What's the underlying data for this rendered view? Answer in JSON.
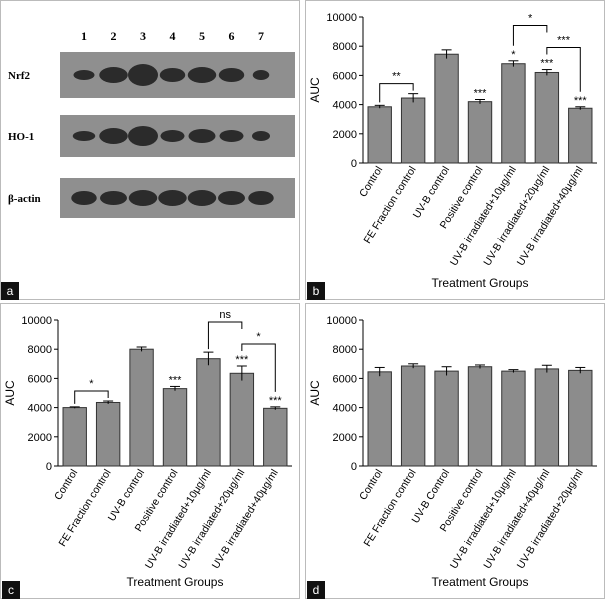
{
  "blot": {
    "panel": "a",
    "lanes": [
      "1",
      "2",
      "3",
      "4",
      "5",
      "6",
      "7"
    ],
    "rows": [
      "Nrf2",
      "HO-1",
      "β-actin"
    ]
  },
  "chart_data": [
    {
      "type": "bar",
      "panel": "b",
      "ylabel": "AUC",
      "xlabel": "Treatment Groups",
      "categories": [
        "Control",
        "FE Fraction control",
        "UV-B control",
        "Positive control",
        "UV-B irradiated+10μg/ml",
        "UV-B irradiated+20μg/ml",
        "UV-B irradiated+40μg/ml"
      ],
      "values": [
        3850,
        4450,
        7450,
        4200,
        6800,
        6200,
        3750
      ],
      "errors": [
        100,
        300,
        300,
        150,
        200,
        200,
        100
      ],
      "color": "#8c8c8c",
      "ylim": [
        0,
        10000
      ],
      "yticks": [
        0,
        2000,
        4000,
        6000,
        8000,
        10000
      ],
      "annotations": [
        {
          "text": "**",
          "from": 0,
          "to": 1
        },
        {
          "text": "***",
          "category": 3
        },
        {
          "text": "*",
          "category": 4
        },
        {
          "text": "***",
          "category": 5
        },
        {
          "text": "***",
          "category": 6
        },
        {
          "text": "***",
          "from": 5,
          "to": 6
        },
        {
          "text": "*",
          "from": 4,
          "to": 5
        }
      ]
    },
    {
      "type": "bar",
      "panel": "c",
      "ylabel": "AUC",
      "xlabel": "Treatment Groups",
      "categories": [
        "Control",
        "FE Fraction control",
        "UV-B control",
        "Positive control",
        "UV-B irradiated+10μg/ml",
        "UV-B irradiated+20μg/ml",
        "UV-B irradiated+40μg/ml"
      ],
      "values": [
        4000,
        4350,
        8000,
        5300,
        7350,
        6350,
        3950
      ],
      "errors": [
        50,
        100,
        150,
        150,
        450,
        500,
        100
      ],
      "color": "#8c8c8c",
      "ylim": [
        0,
        10000
      ],
      "yticks": [
        0,
        2000,
        4000,
        6000,
        8000,
        10000
      ],
      "annotations": [
        {
          "text": "*",
          "from": 0,
          "to": 1
        },
        {
          "text": "***",
          "category": 3
        },
        {
          "text": "***",
          "category": 5
        },
        {
          "text": "***",
          "category": 6
        },
        {
          "text": "*",
          "from": 5,
          "to": 6
        },
        {
          "text": "ns",
          "from": 4,
          "to": 5
        }
      ]
    },
    {
      "type": "bar",
      "panel": "d",
      "ylabel": "AUC",
      "xlabel": "Treatment Groups",
      "categories": [
        "Control",
        "FE Fraction control",
        "UV-B Control",
        "Positive control",
        "UV-B irradiated+10μg/ml",
        "UV-B irradiated+40μg/ml",
        "UV-B irradiated+20μg/ml"
      ],
      "values": [
        6450,
        6850,
        6500,
        6800,
        6500,
        6650,
        6550
      ],
      "errors": [
        300,
        150,
        300,
        120,
        100,
        250,
        200
      ],
      "color": "#8c8c8c",
      "ylim": [
        0,
        10000
      ],
      "yticks": [
        0,
        2000,
        4000,
        6000,
        8000,
        10000
      ],
      "annotations": []
    }
  ]
}
